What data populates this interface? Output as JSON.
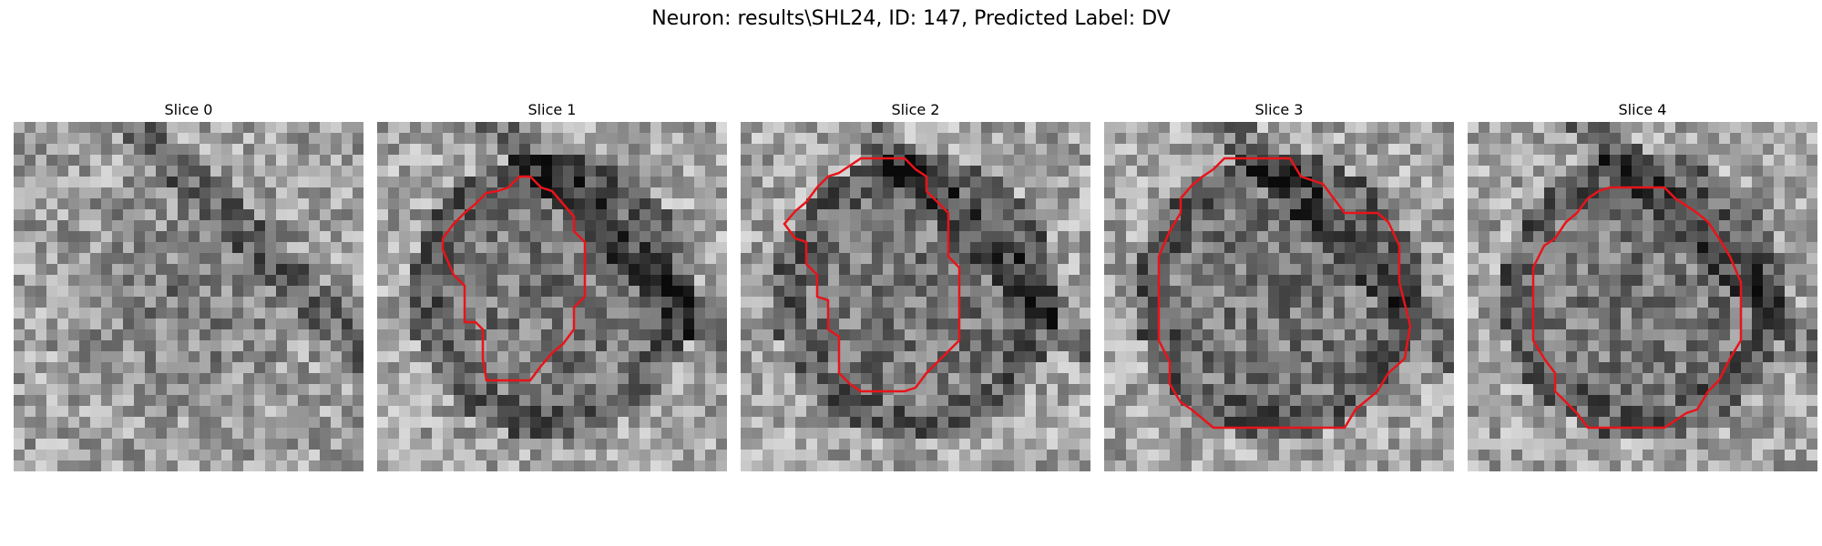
{
  "figure": {
    "title": "Neuron: results\\SHL24, ID: 147, Predicted Label: DV"
  },
  "panels": [
    {
      "title": "Slice 0",
      "has_contour": false
    },
    {
      "title": "Slice 1",
      "has_contour": true
    },
    {
      "title": "Slice 2",
      "has_contour": true
    },
    {
      "title": "Slice 3",
      "has_contour": true
    },
    {
      "title": "Slice 4",
      "has_contour": true
    }
  ],
  "colors": {
    "contour": "#e8141a"
  }
}
